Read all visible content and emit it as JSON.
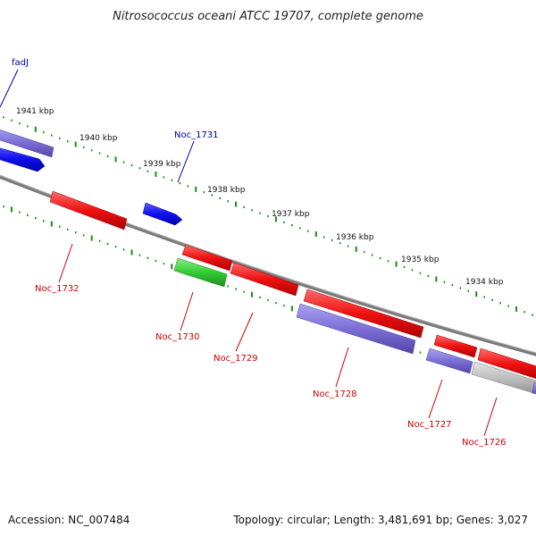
{
  "title": "Nitrosococcus oceani ATCC 19707, complete genome",
  "footer": {
    "accession": "Accession: NC_007484",
    "topology": "Topology: circular; Length: 3,481,691 bp; Genes: 3,027"
  },
  "scale_ticks": [
    "1941 kbp",
    "1940 kbp",
    "1939 kbp",
    "1938 kbp",
    "1937 kbp",
    "1936 kbp",
    "1935 kbp",
    "1934 kbp"
  ],
  "gene_labels": {
    "fadJ": "fadJ",
    "Noc_1731": "Noc_1731",
    "Noc_1732": "Noc_1732",
    "Noc_1730": "Noc_1730",
    "Noc_1729": "Noc_1729",
    "Noc_1728": "Noc_1728",
    "Noc_1727": "Noc_1727",
    "Noc_1726": "Noc_1726"
  },
  "colors": {
    "backbone": "#808080",
    "tick_green": "#1a8a1a",
    "gene_red": "#ee1111",
    "gene_blue": "#1010ee",
    "gene_purple": "#7c6fd6",
    "gene_green": "#33cc33",
    "gene_gray": "#bdbdbd",
    "label_red": "#cc0000",
    "label_blue": "#000099"
  }
}
